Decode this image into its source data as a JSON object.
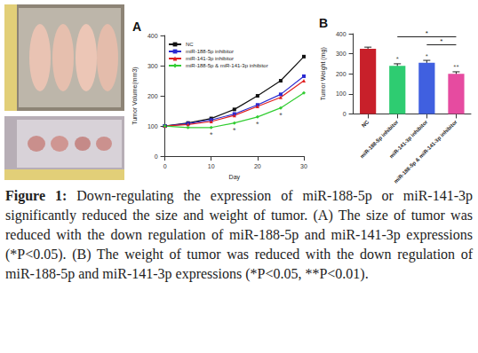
{
  "chart_data": [
    {
      "type": "line",
      "title": "A",
      "xlabel": "Day",
      "ylabel": "Tumor Volume(mm3)",
      "x": [
        0,
        5,
        10,
        15,
        20,
        25,
        30
      ],
      "xlim": [
        0,
        30
      ],
      "xticks": [
        0,
        10,
        20,
        30
      ],
      "ylim": [
        0,
        400
      ],
      "yticks": [
        0,
        100,
        200,
        300,
        400
      ],
      "legend": "top-left",
      "series": [
        {
          "name": "NC",
          "color": "#111111",
          "marker": "square",
          "values": [
            100,
            110,
            125,
            155,
            200,
            250,
            330
          ]
        },
        {
          "name": "miR-188-5p inhibitor",
          "color": "#2a2ad0",
          "marker": "square",
          "values": [
            100,
            108,
            120,
            140,
            170,
            205,
            265
          ]
        },
        {
          "name": "miR-141-3p inhibitor",
          "color": "#e02020",
          "marker": "triangle",
          "values": [
            100,
            105,
            115,
            135,
            165,
            195,
            250
          ]
        },
        {
          "name": "miR-188-5p & miR-141-3p inhibitor",
          "color": "#32cd32",
          "marker": "diamond",
          "values": [
            100,
            95,
            95,
            110,
            130,
            160,
            210
          ]
        }
      ],
      "annotations": [
        {
          "text": "*",
          "x": 10,
          "y": 70
        },
        {
          "text": "*",
          "x": 15,
          "y": 85
        },
        {
          "text": "*",
          "x": 20,
          "y": 105
        },
        {
          "text": "*",
          "x": 25,
          "y": 135
        }
      ]
    },
    {
      "type": "bar",
      "title": "B",
      "ylabel": "Tumor Weight (mg)",
      "categories": [
        "NC",
        "miR-188-5p inhibitor",
        "miR-141-3p inhibitor",
        "miR-188-5p & miR-141-3p inhibitor"
      ],
      "values": [
        325,
        240,
        255,
        200
      ],
      "errors": [
        8,
        10,
        12,
        10
      ],
      "colors": [
        "#c8202a",
        "#2ecc71",
        "#4060e0",
        "#e64ba0"
      ],
      "ylim": [
        0,
        400
      ],
      "yticks": [
        0,
        100,
        200,
        300,
        400
      ],
      "significance": [
        {
          "category": "miR-188-5p inhibitor",
          "text": "*"
        },
        {
          "category": "miR-141-3p inhibitor",
          "text": "*"
        },
        {
          "category": "miR-188-5p & miR-141-3p inhibitor",
          "text": "**"
        }
      ],
      "comparisons": [
        {
          "from": "miR-188-5p inhibitor",
          "to": "miR-188-5p & miR-141-3p inhibitor",
          "y": 385,
          "text": "*"
        },
        {
          "from": "miR-141-3p inhibitor",
          "to": "miR-188-5p & miR-141-3p inhibitor",
          "y": 345,
          "text": "*"
        }
      ]
    }
  ],
  "caption": {
    "label": "Figure 1:",
    "text": "Down-regulating the expression of miR-188-5p or miR-141-3p significantly reduced the size and weight of tumor. (A) The size of tumor was reduced with the down regulation of miR-188-5p and miR-141-3p expressions (*P<0.05). (B) The weight of tumor was reduced with the down regulation of miR-188-5p and miR-141-3p expressions (*P<0.05, **P<0.01)."
  }
}
